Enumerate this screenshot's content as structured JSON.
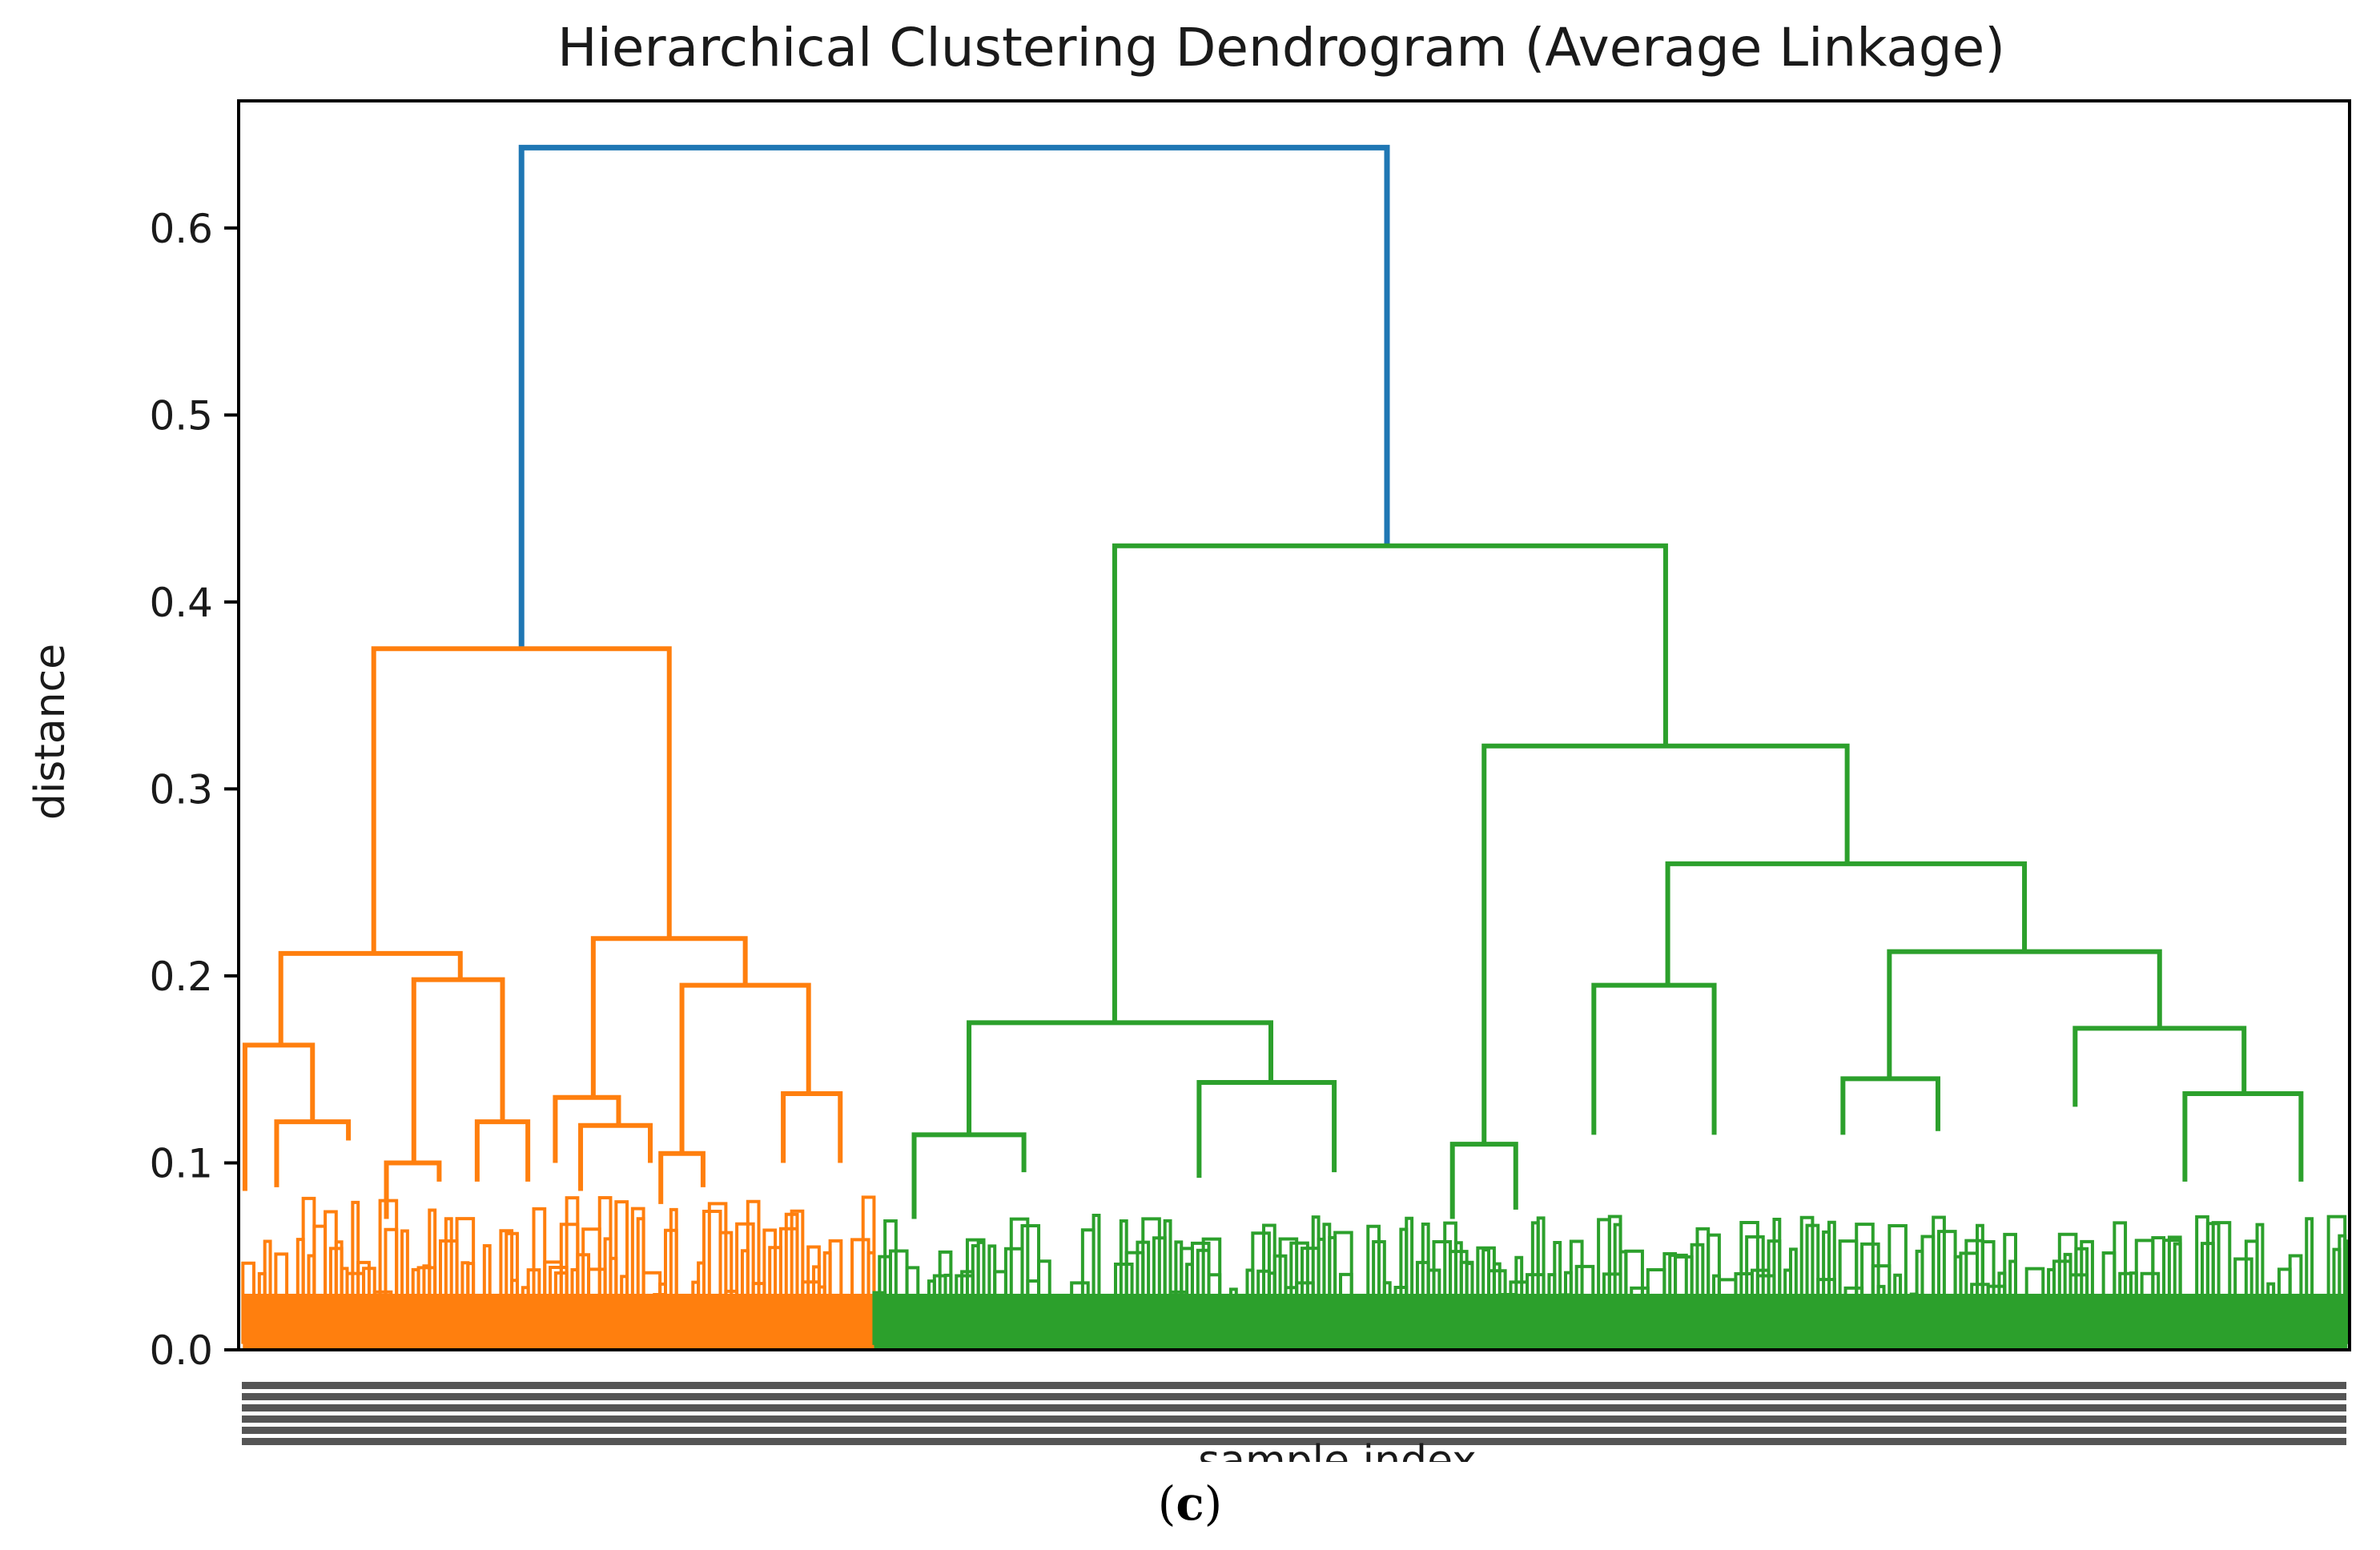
{
  "chart_data": {
    "type": "dendrogram",
    "title": "Hierarchical Clustering Dendrogram (Average Linkage)",
    "xlabel": "sample index",
    "ylabel": "distance",
    "ylim": [
      0,
      0.668
    ],
    "yticks": [
      "0.0",
      "0.1",
      "0.2",
      "0.3",
      "0.4",
      "0.5",
      "0.6"
    ],
    "colors": {
      "root": "#1f77b4",
      "cluster_1": "#ff7f0e",
      "cluster_2": "#2ca02c",
      "axes": "#000000"
    },
    "x_domain": [
      0,
      1000
    ],
    "merges": [
      {
        "name": "root",
        "x_left": 134,
        "x_right": 544,
        "height": 0.643,
        "left_base": 0.375,
        "right_base": 0.43,
        "color": "root"
      },
      {
        "name": "c1-top",
        "x_left": 64,
        "x_right": 204,
        "height": 0.375,
        "left_base": 0.212,
        "right_base": 0.22,
        "color": "cluster_1"
      },
      {
        "name": "c1-a",
        "x_left": 20,
        "x_right": 105,
        "height": 0.212,
        "left_base": 0.163,
        "right_base": 0.198,
        "color": "cluster_1"
      },
      {
        "name": "c1-b",
        "x_left": 168,
        "x_right": 240,
        "height": 0.22,
        "left_base": 0.135,
        "right_base": 0.195,
        "color": "cluster_1"
      },
      {
        "name": "c1-a1",
        "x_left": 3,
        "x_right": 35,
        "height": 0.163,
        "left_base": 0.085,
        "right_base": 0.122,
        "color": "cluster_1"
      },
      {
        "name": "c1-a2",
        "x_left": 83,
        "x_right": 125,
        "height": 0.198,
        "left_base": 0.1,
        "right_base": 0.122,
        "color": "cluster_1"
      },
      {
        "name": "c1-b1",
        "x_left": 150,
        "x_right": 180,
        "height": 0.135,
        "left_base": 0.1,
        "right_base": 0.12,
        "color": "cluster_1"
      },
      {
        "name": "c1-b2",
        "x_left": 210,
        "x_right": 270,
        "height": 0.195,
        "left_base": 0.105,
        "right_base": 0.137,
        "color": "cluster_1"
      },
      {
        "name": "c1-b2r",
        "x_left": 258,
        "x_right": 285,
        "height": 0.137,
        "left_base": 0.1,
        "right_base": 0.1,
        "color": "cluster_1"
      },
      {
        "name": "c1-a1r",
        "x_left": 18,
        "x_right": 52,
        "height": 0.122,
        "left_base": 0.087,
        "right_base": 0.112,
        "color": "cluster_1"
      },
      {
        "name": "c1-a2l",
        "x_left": 70,
        "x_right": 95,
        "height": 0.1,
        "left_base": 0.07,
        "right_base": 0.09,
        "color": "cluster_1"
      },
      {
        "name": "c1-a2r",
        "x_left": 113,
        "x_right": 137,
        "height": 0.122,
        "left_base": 0.09,
        "right_base": 0.09,
        "color": "cluster_1"
      },
      {
        "name": "c1-b1r",
        "x_left": 162,
        "x_right": 195,
        "height": 0.12,
        "left_base": 0.085,
        "right_base": 0.1,
        "color": "cluster_1"
      },
      {
        "name": "c1-b2l",
        "x_left": 200,
        "x_right": 220,
        "height": 0.105,
        "left_base": 0.078,
        "right_base": 0.087,
        "color": "cluster_1"
      },
      {
        "name": "c2-top",
        "x_left": 415,
        "x_right": 676,
        "height": 0.43,
        "left_base": 0.175,
        "right_base": 0.323,
        "color": "cluster_2"
      },
      {
        "name": "c2-a",
        "x_left": 346,
        "x_right": 489,
        "height": 0.175,
        "left_base": 0.115,
        "right_base": 0.143,
        "color": "cluster_2"
      },
      {
        "name": "c2-b",
        "x_left": 590,
        "x_right": 762,
        "height": 0.323,
        "left_base": 0.11,
        "right_base": 0.26,
        "color": "cluster_2"
      },
      {
        "name": "c2-b2",
        "x_left": 677,
        "x_right": 846,
        "height": 0.26,
        "left_base": 0.195,
        "right_base": 0.213,
        "color": "cluster_2"
      },
      {
        "name": "c2-b2l",
        "x_left": 642,
        "x_right": 699,
        "height": 0.195,
        "left_base": 0.115,
        "right_base": 0.115,
        "color": "cluster_2"
      },
      {
        "name": "c2-b2r",
        "x_left": 782,
        "x_right": 910,
        "height": 0.213,
        "left_base": 0.145,
        "right_base": 0.172,
        "color": "cluster_2"
      },
      {
        "name": "c2-b2r1",
        "x_left": 760,
        "x_right": 805,
        "height": 0.145,
        "left_base": 0.115,
        "right_base": 0.117,
        "color": "cluster_2"
      },
      {
        "name": "c2-b2r2",
        "x_left": 870,
        "x_right": 950,
        "height": 0.172,
        "left_base": 0.13,
        "right_base": 0.137,
        "color": "cluster_2"
      },
      {
        "name": "c2-a1",
        "x_left": 320,
        "x_right": 372,
        "height": 0.115,
        "left_base": 0.07,
        "right_base": 0.095,
        "color": "cluster_2"
      },
      {
        "name": "c2-a2",
        "x_left": 455,
        "x_right": 519,
        "height": 0.143,
        "left_base": 0.092,
        "right_base": 0.095,
        "color": "cluster_2"
      },
      {
        "name": "c2-b1",
        "x_left": 575,
        "x_right": 605,
        "height": 0.11,
        "left_base": 0.07,
        "right_base": 0.075,
        "color": "cluster_2"
      },
      {
        "name": "c2-b2r2r",
        "x_left": 922,
        "x_right": 977,
        "height": 0.137,
        "left_base": 0.09,
        "right_base": 0.09,
        "color": "cluster_2"
      }
    ]
  },
  "caption": {
    "open": "(",
    "label": "c",
    "close": ")"
  }
}
